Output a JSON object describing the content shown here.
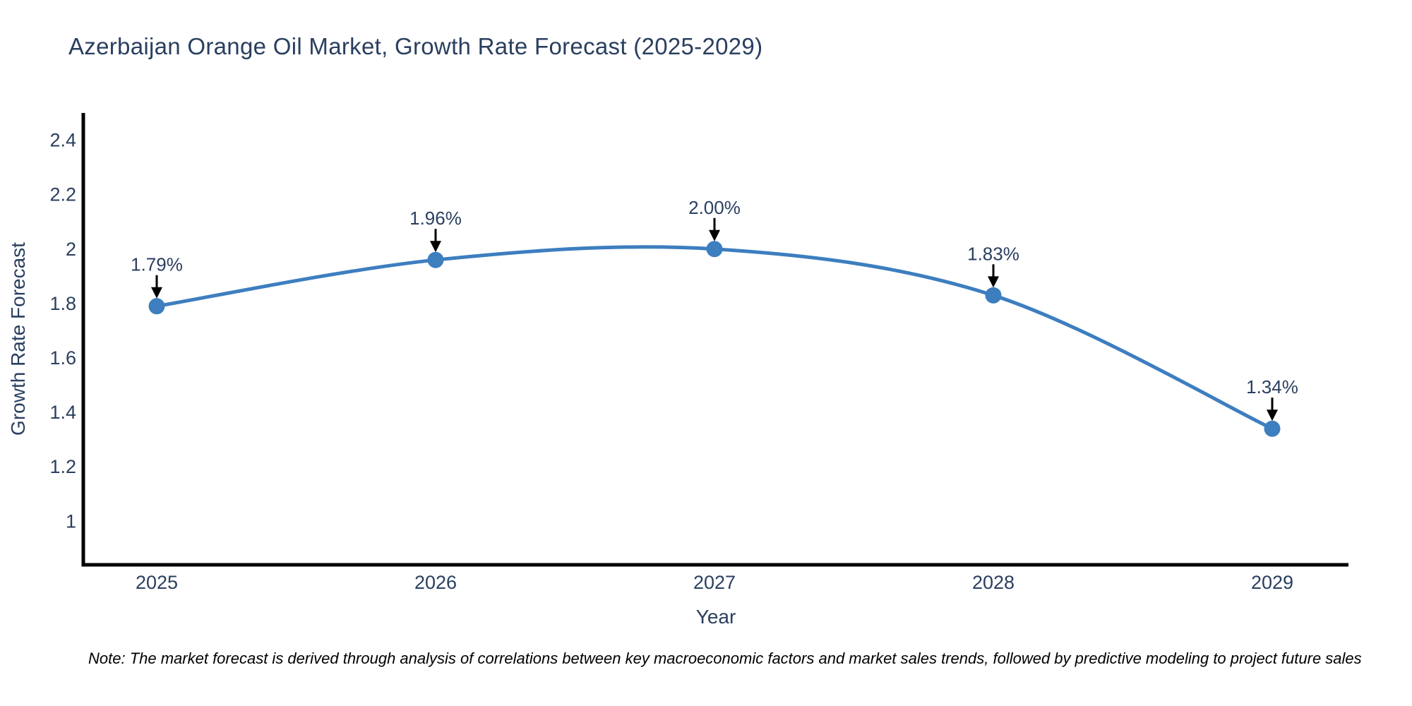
{
  "title": "Azerbaijan Orange Oil Market, Growth Rate Forecast (2025-2029)",
  "note": "Note: The market forecast is derived through analysis of correlations between key macroeconomic factors and market sales trends, followed by predictive modeling to project future sales",
  "chart_data": {
    "type": "line",
    "line_shape": "spline",
    "x": [
      2025,
      2026,
      2027,
      2028,
      2029
    ],
    "values": [
      1.79,
      1.96,
      2.0,
      1.83,
      1.34
    ],
    "point_labels": [
      "1.79%",
      "1.96%",
      "2.00%",
      "1.83%",
      "1.34%"
    ],
    "xticklabels": [
      "2025",
      "2026",
      "2027",
      "2028",
      "2029"
    ],
    "yticks": [
      1,
      1.2,
      1.4,
      1.6,
      1.8,
      2,
      2.2,
      2.4
    ],
    "yticklabels": [
      "1",
      "1.2",
      "1.4",
      "1.6",
      "1.8",
      "2",
      "2.2",
      "2.4"
    ],
    "title": "Azerbaijan Orange Oil Market, Growth Rate Forecast (2025-2029)",
    "xlabel": "Year",
    "ylabel": "Growth Rate Forecast",
    "xlim": [
      2025,
      2029
    ],
    "ylim": [
      0.84,
      2.5
    ],
    "grid": false,
    "legend": false,
    "markers": "circle",
    "annotation_arrows": true
  },
  "colors": {
    "line": "#3d7ebf",
    "marker": "#3d7ebf",
    "text": "#2a3f5f",
    "axis": "#000000",
    "arrow": "#000000",
    "note_text": "#000000",
    "background": "#ffffff"
  }
}
